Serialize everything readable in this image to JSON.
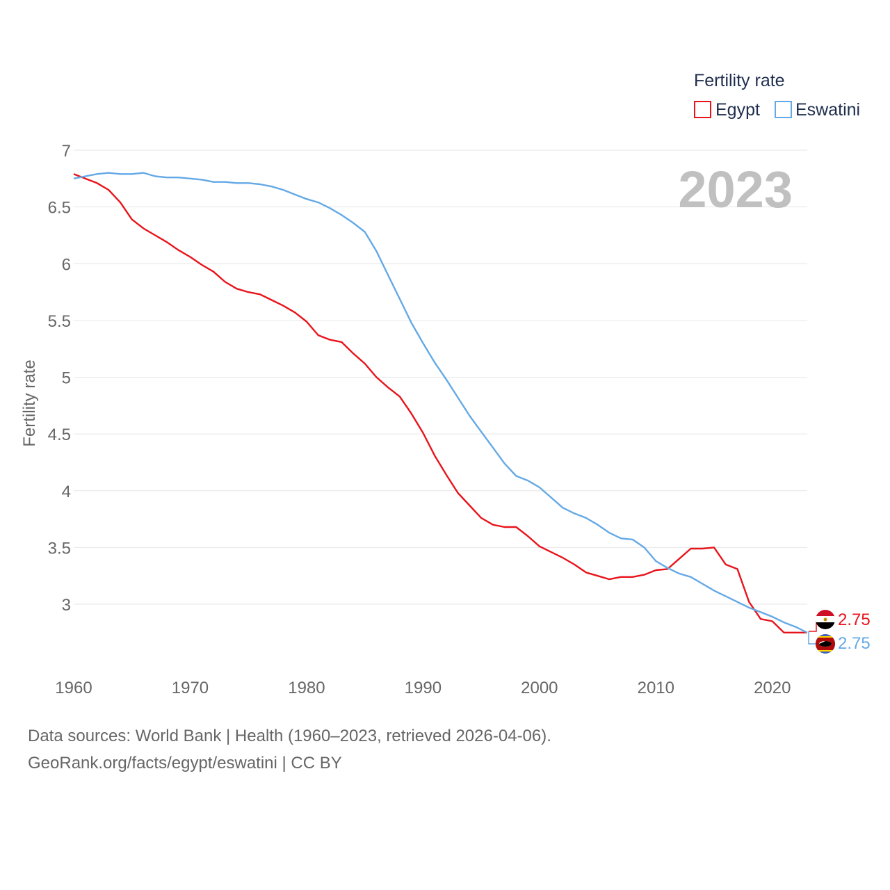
{
  "chart_data": {
    "type": "line",
    "title": "Fertility rate",
    "year_label": "2023",
    "ylabel": "Fertility rate",
    "xlabel": "",
    "xlim": [
      1960,
      2023
    ],
    "ylim": [
      2.55,
      7
    ],
    "y_ticks": [
      "3",
      "3.5",
      "4",
      "4.5",
      "5",
      "5.5",
      "6",
      "6.5",
      "7"
    ],
    "x_ticks": [
      "1960",
      "1970",
      "1980",
      "1990",
      "2000",
      "2010",
      "2020"
    ],
    "x": [
      1960,
      1961,
      1962,
      1963,
      1964,
      1965,
      1966,
      1967,
      1968,
      1969,
      1970,
      1971,
      1972,
      1973,
      1974,
      1975,
      1976,
      1977,
      1978,
      1979,
      1980,
      1981,
      1982,
      1983,
      1984,
      1985,
      1986,
      1987,
      1988,
      1989,
      1990,
      1991,
      1992,
      1993,
      1994,
      1995,
      1996,
      1997,
      1998,
      1999,
      2000,
      2001,
      2002,
      2003,
      2004,
      2005,
      2006,
      2007,
      2008,
      2009,
      2010,
      2011,
      2012,
      2013,
      2014,
      2015,
      2016,
      2017,
      2018,
      2019,
      2020,
      2021,
      2022,
      2023
    ],
    "series": [
      {
        "name": "Egypt",
        "color": "#e8141b",
        "end_label": "2.75",
        "values": [
          6.79,
          6.75,
          6.71,
          6.65,
          6.54,
          6.39,
          6.31,
          6.25,
          6.19,
          6.12,
          6.06,
          5.99,
          5.93,
          5.84,
          5.78,
          5.75,
          5.73,
          5.68,
          5.63,
          5.57,
          5.49,
          5.37,
          5.33,
          5.31,
          5.21,
          5.12,
          5.0,
          4.91,
          4.83,
          4.68,
          4.51,
          4.31,
          4.14,
          3.98,
          3.87,
          3.76,
          3.7,
          3.68,
          3.68,
          3.6,
          3.51,
          3.46,
          3.41,
          3.35,
          3.28,
          3.25,
          3.22,
          3.24,
          3.24,
          3.26,
          3.3,
          3.31,
          3.4,
          3.49,
          3.49,
          3.5,
          3.35,
          3.31,
          3.02,
          2.87,
          2.85,
          2.75,
          2.75,
          2.75
        ]
      },
      {
        "name": "Eswatini",
        "color": "#64a9e6",
        "end_label": "2.75",
        "values": [
          6.75,
          6.77,
          6.79,
          6.8,
          6.79,
          6.79,
          6.8,
          6.77,
          6.76,
          6.76,
          6.75,
          6.74,
          6.72,
          6.72,
          6.71,
          6.71,
          6.7,
          6.68,
          6.65,
          6.61,
          6.57,
          6.54,
          6.49,
          6.43,
          6.36,
          6.28,
          6.11,
          5.9,
          5.69,
          5.48,
          5.3,
          5.13,
          4.98,
          4.82,
          4.66,
          4.52,
          4.38,
          4.24,
          4.13,
          4.09,
          4.03,
          3.94,
          3.85,
          3.8,
          3.76,
          3.7,
          3.63,
          3.58,
          3.57,
          3.5,
          3.38,
          3.32,
          3.27,
          3.24,
          3.18,
          3.12,
          3.07,
          3.02,
          2.97,
          2.93,
          2.89,
          2.84,
          2.8,
          2.75
        ]
      }
    ]
  },
  "legend": {
    "title": "Fertility rate",
    "items": [
      {
        "label": "Egypt",
        "color": "#e8141b"
      },
      {
        "label": "Eswatini",
        "color": "#64a9e6"
      }
    ]
  },
  "footer": {
    "line1": "Data sources: World Bank | Health (1960–2023, retrieved 2026-04-06).",
    "line2": "GeoRank.org/facts/egypt/eswatini | CC BY"
  }
}
